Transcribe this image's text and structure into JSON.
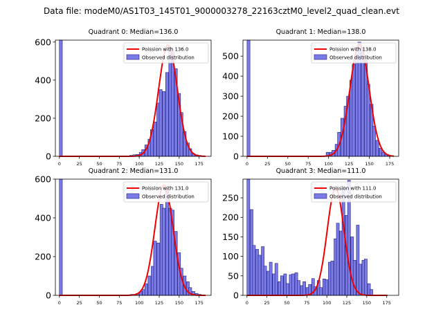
{
  "figure_title": "Data file: modeM0/AS1T03_145T01_9000003278_22163cztM0_level2_quad_clean.evt",
  "colors": {
    "hist_fill": "#7b7be8",
    "hist_edge": "#1f1f7a",
    "poisson": "#ee0000",
    "axes": "#000000"
  },
  "chart_data": [
    {
      "type": "bar",
      "title": "Quadrant 0: Median=136.0",
      "legend": {
        "line": "Poission with 136.0",
        "bar": "Observed distribution",
        "position": "top-right"
      },
      "xlim": [
        -5,
        190
      ],
      "ylim": [
        0,
        610
      ],
      "xticks": [
        0,
        25,
        50,
        75,
        100,
        125,
        150,
        175
      ],
      "yticks": [
        0,
        200,
        400,
        600
      ],
      "bin_width": 3.7,
      "poisson_mean": 136,
      "poisson_peak": 585,
      "poisson_range": [
        0,
        183
      ],
      "bins": [
        [
          0,
          610
        ],
        [
          88,
          5
        ],
        [
          92,
          8
        ],
        [
          96,
          10
        ],
        [
          100,
          20
        ],
        [
          103,
          35
        ],
        [
          107,
          60
        ],
        [
          111,
          90
        ],
        [
          114,
          140
        ],
        [
          118,
          180
        ],
        [
          122,
          280
        ],
        [
          125,
          350
        ],
        [
          129,
          340
        ],
        [
          133,
          440
        ],
        [
          137,
          570
        ],
        [
          140,
          550
        ],
        [
          144,
          460
        ],
        [
          148,
          330
        ],
        [
          151,
          230
        ],
        [
          155,
          130
        ],
        [
          159,
          70
        ],
        [
          162,
          40
        ],
        [
          166,
          15
        ],
        [
          170,
          8
        ],
        [
          174,
          5
        ],
        [
          177,
          2
        ]
      ]
    },
    {
      "type": "bar",
      "title": "Quadrant 1: Median=138.0",
      "legend": {
        "line": "Poission with 138.0",
        "bar": "Observed distribution",
        "position": "top-right"
      },
      "xlim": [
        -5,
        186
      ],
      "ylim": [
        0,
        580
      ],
      "xticks": [
        0,
        25,
        50,
        75,
        100,
        125,
        150,
        175
      ],
      "yticks": [
        0,
        100,
        200,
        300,
        400,
        500
      ],
      "bin_width": 3.6,
      "poisson_mean": 138,
      "poisson_peak": 560,
      "poisson_range": [
        0,
        180
      ],
      "bins": [
        [
          0,
          580
        ],
        [
          97,
          20
        ],
        [
          101,
          20
        ],
        [
          104,
          30
        ],
        [
          108,
          60
        ],
        [
          111,
          120
        ],
        [
          115,
          190
        ],
        [
          119,
          250
        ],
        [
          122,
          300
        ],
        [
          126,
          380
        ],
        [
          129,
          460
        ],
        [
          133,
          510
        ],
        [
          136,
          570
        ],
        [
          140,
          540
        ],
        [
          144,
          480
        ],
        [
          147,
          360
        ],
        [
          151,
          260
        ],
        [
          154,
          150
        ],
        [
          158,
          80
        ],
        [
          162,
          40
        ],
        [
          165,
          20
        ],
        [
          169,
          10
        ],
        [
          172,
          5
        ]
      ]
    },
    {
      "type": "bar",
      "title": "Quadrant 2: Median=131.0",
      "legend": {
        "line": "Poission with 131.0",
        "bar": "Observed distribution",
        "position": "top-right"
      },
      "xlim": [
        -5,
        190
      ],
      "ylim": [
        0,
        600
      ],
      "xticks": [
        0,
        25,
        50,
        75,
        100,
        125,
        150,
        175
      ],
      "yticks": [
        0,
        200,
        400,
        600
      ],
      "bin_width": 3.7,
      "poisson_mean": 131,
      "poisson_peak": 570,
      "poisson_range": [
        0,
        183
      ],
      "bins": [
        [
          0,
          600
        ],
        [
          85,
          2
        ],
        [
          89,
          5
        ],
        [
          93,
          5
        ],
        [
          96,
          10
        ],
        [
          100,
          20
        ],
        [
          104,
          30
        ],
        [
          107,
          60
        ],
        [
          111,
          100
        ],
        [
          115,
          150
        ],
        [
          118,
          280
        ],
        [
          122,
          270
        ],
        [
          126,
          470
        ],
        [
          129,
          450
        ],
        [
          133,
          550
        ],
        [
          137,
          450
        ],
        [
          140,
          440
        ],
        [
          144,
          330
        ],
        [
          148,
          220
        ],
        [
          151,
          140
        ],
        [
          155,
          100
        ],
        [
          159,
          70
        ],
        [
          162,
          40
        ],
        [
          166,
          20
        ],
        [
          170,
          10
        ],
        [
          174,
          5
        ]
      ]
    },
    {
      "type": "bar",
      "title": "Quadrant 3: Median=111.0",
      "legend": {
        "line": "Poission with 111.0",
        "bar": "Observed distribution",
        "position": "top-right"
      },
      "xlim": [
        -5,
        190
      ],
      "ylim": [
        0,
        298
      ],
      "xticks": [
        0,
        25,
        50,
        75,
        100,
        125,
        150,
        175
      ],
      "yticks": [
        0,
        50,
        100,
        150,
        200,
        250
      ],
      "bin_width": 3.55,
      "poisson_mean": 111,
      "poisson_peak": 275,
      "poisson_range": [
        0,
        176
      ],
      "bins": [
        [
          0,
          298
        ],
        [
          4,
          220
        ],
        [
          7,
          128
        ],
        [
          11,
          118
        ],
        [
          14,
          103
        ],
        [
          18,
          125
        ],
        [
          21,
          75
        ],
        [
          25,
          62
        ],
        [
          28,
          85
        ],
        [
          32,
          55
        ],
        [
          35,
          82
        ],
        [
          39,
          35
        ],
        [
          42,
          50
        ],
        [
          46,
          55
        ],
        [
          49,
          30
        ],
        [
          53,
          53
        ],
        [
          56,
          55
        ],
        [
          60,
          58
        ],
        [
          63,
          38
        ],
        [
          67,
          25
        ],
        [
          70,
          35
        ],
        [
          74,
          20
        ],
        [
          77,
          28
        ],
        [
          81,
          43
        ],
        [
          84,
          22
        ],
        [
          88,
          38
        ],
        [
          91,
          20
        ],
        [
          95,
          42
        ],
        [
          98,
          40
        ],
        [
          102,
          85
        ],
        [
          105,
          88
        ],
        [
          109,
          145
        ],
        [
          112,
          185
        ],
        [
          116,
          165
        ],
        [
          119,
          280
        ],
        [
          123,
          205
        ],
        [
          126,
          295
        ],
        [
          130,
          150
        ],
        [
          133,
          90
        ],
        [
          137,
          180
        ],
        [
          140,
          80
        ],
        [
          144,
          90
        ],
        [
          147,
          93
        ],
        [
          151,
          30
        ],
        [
          154,
          15
        ]
      ]
    }
  ]
}
